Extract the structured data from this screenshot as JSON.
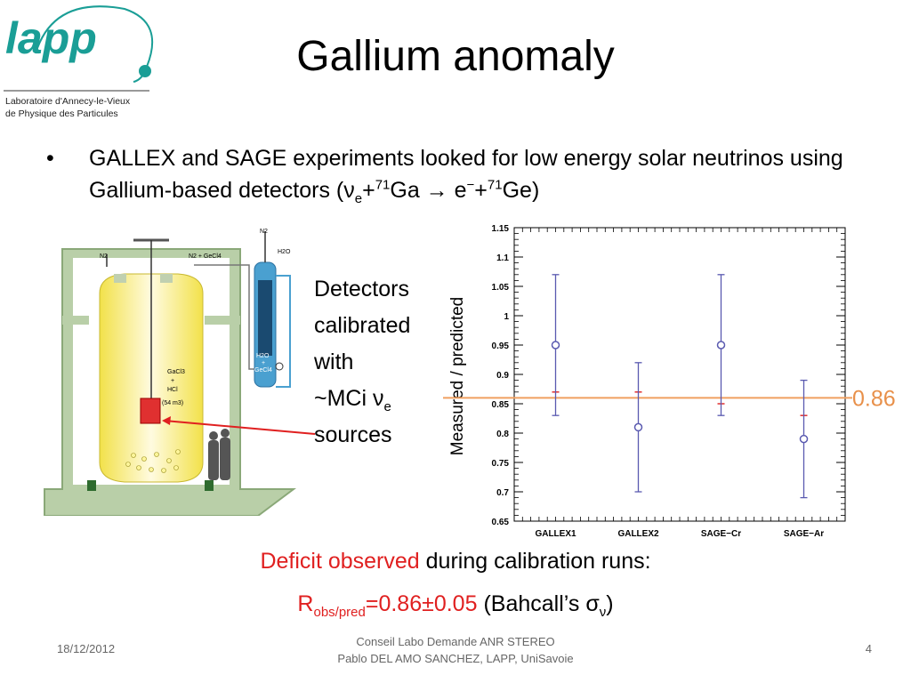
{
  "logo": {
    "name": "lapp",
    "line1": "Laboratoire d'Annecy-le-Vieux",
    "line2": "de  Physique  des  Particules",
    "color": "#1a9e96"
  },
  "title": "Gallium anomaly",
  "bullet": {
    "t1": "GALLEX and SAGE experiments looked for low energy solar neutrinos using Gallium-based detectors (ν",
    "t1_sub": "e",
    "t2": "+",
    "t2_sup": "71",
    "t3": "Ga → e",
    "t3_sup": "−",
    "t4": "+",
    "t4_sup": "71",
    "t5": "Ge)"
  },
  "detector_labels": {
    "n2_top": "N2",
    "h2o": "H2O",
    "n2_left": "N2",
    "n2_gecl4": "N2 + GeCl4",
    "gacl3": "GaCl3",
    "plus1": "+",
    "hcl": "HCl",
    "volume": "(54 m3)",
    "h2o_b": "H2O",
    "plus2": "+",
    "gecl4": "GeCl4"
  },
  "detectors_text": {
    "l1": "Detectors",
    "l2": "calibrated",
    "l3": "with",
    "l4a": "~MCi ν",
    "l4_sub": "e",
    "l5": "sources"
  },
  "chart_data": {
    "type": "scatter",
    "ylabel": "Measured / predicted",
    "categories": [
      "GALLEX1",
      "GALLEX2",
      "SAGE−Cr",
      "SAGE−Ar"
    ],
    "values": [
      0.95,
      0.81,
      0.95,
      0.79
    ],
    "err_low": [
      0.83,
      0.7,
      0.83,
      0.69
    ],
    "err_high": [
      1.07,
      0.92,
      1.07,
      0.89
    ],
    "red_marks": [
      0.87,
      0.87,
      0.85,
      0.83
    ],
    "yticks": [
      "0.65",
      "0.7",
      "0.75",
      "0.8",
      "0.85",
      "0.9",
      "0.95",
      "1",
      "1.05",
      "1.1",
      "1.15"
    ],
    "ylim": [
      0.65,
      1.15
    ],
    "ref_line": 0.86,
    "ref_label": "0.86",
    "colors": {
      "points": "#5a5ab0",
      "ref": "#f0a060",
      "marks": "#e03030"
    }
  },
  "deficit": {
    "red": "Deficit observed",
    "rest": " during calibration runs:"
  },
  "ratio": {
    "r": "R",
    "sub": "obs/pred",
    "val": "=0.86±0.05",
    "rest": " (Bahcall’s σ",
    "sub2": "ν",
    "end": ")"
  },
  "footer": {
    "date": "18/12/2012",
    "line1": "Conseil Labo Demande ANR STEREO",
    "line2": "Pablo DEL AMO SANCHEZ, LAPP, UniSavoie",
    "page": "4"
  }
}
